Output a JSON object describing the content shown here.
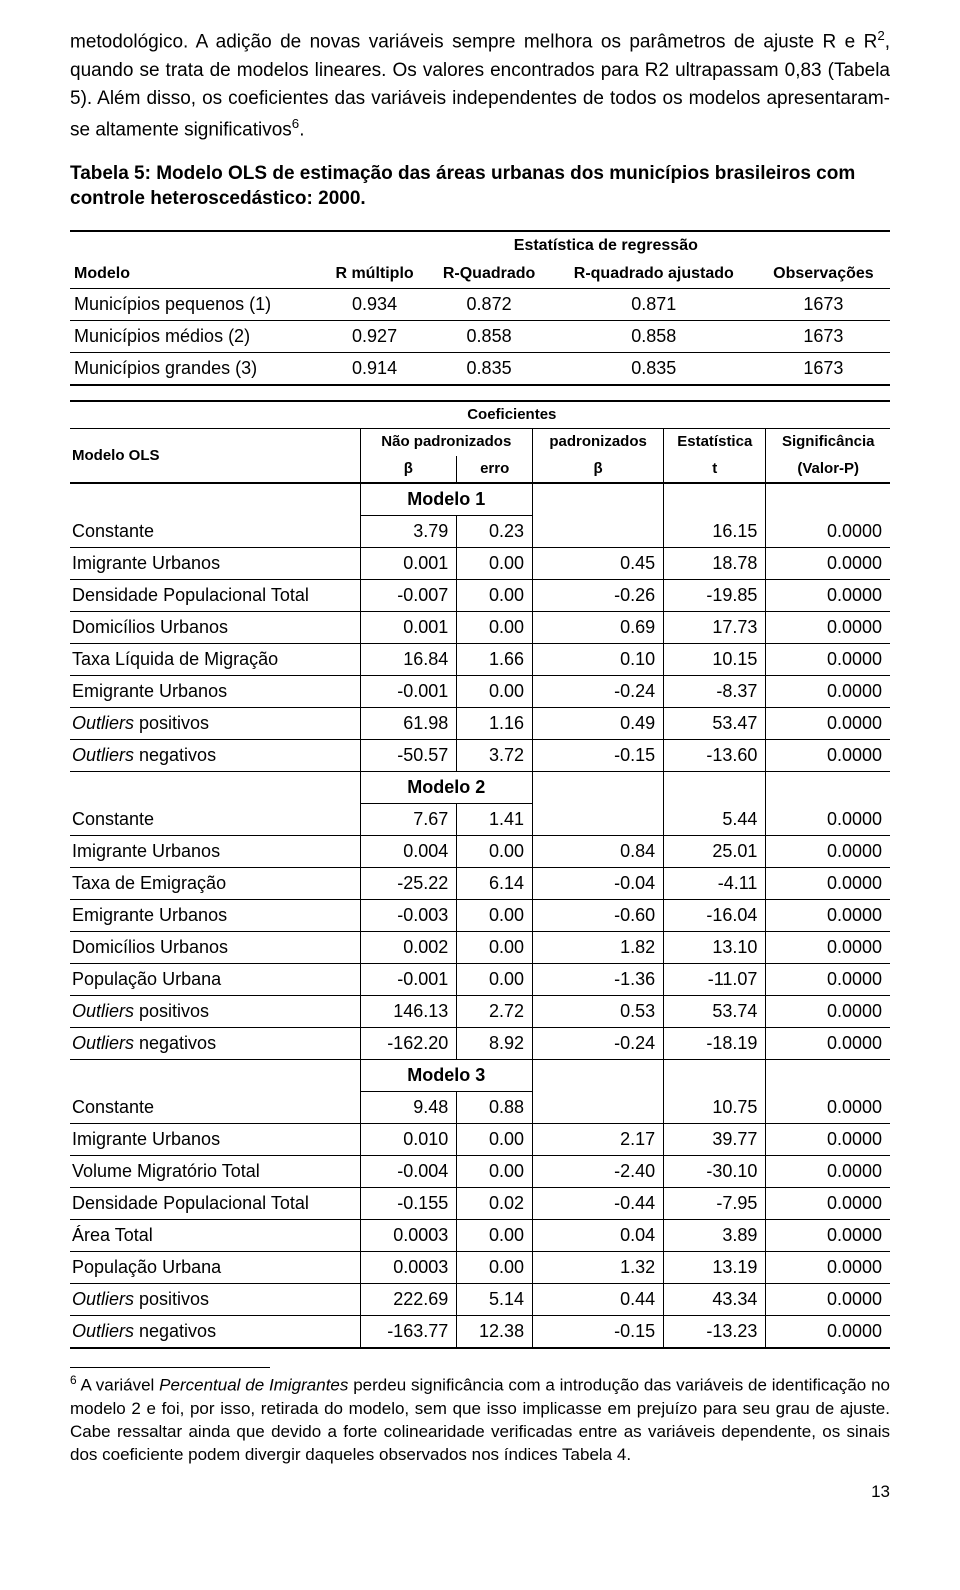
{
  "paragraph1_a": "metodológico. A adição de novas variáveis sempre melhora os parâmetros de ajuste R e R",
  "paragraph1_sup1": "2",
  "paragraph1_b": ", quando se trata de modelos lineares. Os valores encontrados para R2 ultrapassam 0,83 (Tabela 5). Além disso, os coeficientes das variáveis independentes de todos os modelos apresentaram-se altamente significativos",
  "paragraph1_sup2": "6",
  "paragraph1_c": ".",
  "table_caption": "Tabela 5: Modelo OLS de estimação das áreas urbanas dos municípios brasileiros com controle heteroscedástico: 2000.",
  "t1": {
    "super_header": "Estatística de regressão",
    "h_model": "Modelo",
    "h_rm": "R múltiplo",
    "h_r2": "R-Quadrado",
    "h_r2a": "R-quadrado ajustado",
    "h_obs": "Observações",
    "rows": [
      {
        "label": "Municípios pequenos (1)",
        "rm": "0.934",
        "r2": "0.872",
        "r2a": "0.871",
        "obs": "1673"
      },
      {
        "label": "Municípios médios (2)",
        "rm": "0.927",
        "r2": "0.858",
        "r2a": "0.858",
        "obs": "1673"
      },
      {
        "label": "Municípios grandes (3)",
        "rm": "0.914",
        "r2": "0.835",
        "r2a": "0.835",
        "obs": "1673"
      }
    ]
  },
  "t2": {
    "h_model": "Modelo OLS",
    "h_coef": "Coeficientes",
    "h_nonstd": "Não padronizados",
    "h_std": "padronizados",
    "h_stat": "Estatística",
    "h_sig": "Significância",
    "h_beta": "β",
    "h_err": "erro",
    "h_t": "t",
    "h_p": "(Valor-P)",
    "sections": [
      {
        "title": "Modelo 1",
        "rows": [
          {
            "v": "Constante",
            "b": "3.79",
            "e": "0.23",
            "bstd": "",
            "t": "16.15",
            "p": "0.0000"
          },
          {
            "v": "Imigrante Urbanos",
            "b": "0.001",
            "e": "0.00",
            "bstd": "0.45",
            "t": "18.78",
            "p": "0.0000"
          },
          {
            "v": "Densidade Populacional Total",
            "b": "-0.007",
            "e": "0.00",
            "bstd": "-0.26",
            "t": "-19.85",
            "p": "0.0000"
          },
          {
            "v": "Domicílios Urbanos",
            "b": "0.001",
            "e": "0.00",
            "bstd": "0.69",
            "t": "17.73",
            "p": "0.0000"
          },
          {
            "v": "Taxa Líquida de Migração",
            "b": "16.84",
            "e": "1.66",
            "bstd": "0.10",
            "t": "10.15",
            "p": "0.0000"
          },
          {
            "v": "Emigrante Urbanos",
            "b": "-0.001",
            "e": "0.00",
            "bstd": "-0.24",
            "t": "-8.37",
            "p": "0.0000"
          },
          {
            "v": "Outliers positivos",
            "it": true,
            "b": "61.98",
            "e": "1.16",
            "bstd": "0.49",
            "t": "53.47",
            "p": "0.0000"
          },
          {
            "v": "Outliers negativos",
            "it": true,
            "b": "-50.57",
            "e": "3.72",
            "bstd": "-0.15",
            "t": "-13.60",
            "p": "0.0000"
          }
        ]
      },
      {
        "title": "Modelo 2",
        "rows": [
          {
            "v": "Constante",
            "b": "7.67",
            "e": "1.41",
            "bstd": "",
            "t": "5.44",
            "p": "0.0000"
          },
          {
            "v": "Imigrante Urbanos",
            "b": "0.004",
            "e": "0.00",
            "bstd": "0.84",
            "t": "25.01",
            "p": "0.0000"
          },
          {
            "v": "Taxa de Emigração",
            "b": "-25.22",
            "e": "6.14",
            "bstd": "-0.04",
            "t": "-4.11",
            "p": "0.0000"
          },
          {
            "v": "Emigrante Urbanos",
            "b": "-0.003",
            "e": "0.00",
            "bstd": "-0.60",
            "t": "-16.04",
            "p": "0.0000"
          },
          {
            "v": "Domicílios Urbanos",
            "b": "0.002",
            "e": "0.00",
            "bstd": "1.82",
            "t": "13.10",
            "p": "0.0000"
          },
          {
            "v": "População Urbana",
            "b": "-0.001",
            "e": "0.00",
            "bstd": "-1.36",
            "t": "-11.07",
            "p": "0.0000"
          },
          {
            "v": "Outliers positivos",
            "it": true,
            "b": "146.13",
            "e": "2.72",
            "bstd": "0.53",
            "t": "53.74",
            "p": "0.0000"
          },
          {
            "v": "Outliers negativos",
            "it": true,
            "b": "-162.20",
            "e": "8.92",
            "bstd": "-0.24",
            "t": "-18.19",
            "p": "0.0000"
          }
        ]
      },
      {
        "title": "Modelo 3",
        "rows": [
          {
            "v": "Constante",
            "b": "9.48",
            "e": "0.88",
            "bstd": "",
            "t": "10.75",
            "p": "0.0000"
          },
          {
            "v": "Imigrante Urbanos",
            "b": "0.010",
            "e": "0.00",
            "bstd": "2.17",
            "t": "39.77",
            "p": "0.0000"
          },
          {
            "v": "Volume Migratório Total",
            "b": "-0.004",
            "e": "0.00",
            "bstd": "-2.40",
            "t": "-30.10",
            "p": "0.0000"
          },
          {
            "v": "Densidade Populacional Total",
            "b": "-0.155",
            "e": "0.02",
            "bstd": "-0.44",
            "t": "-7.95",
            "p": "0.0000"
          },
          {
            "v": "Área Total",
            "b": "0.0003",
            "e": "0.00",
            "bstd": "0.04",
            "t": "3.89",
            "p": "0.0000"
          },
          {
            "v": "População Urbana",
            "b": "0.0003",
            "e": "0.00",
            "bstd": "1.32",
            "t": "13.19",
            "p": "0.0000"
          },
          {
            "v": "Outliers positivos",
            "it": true,
            "b": "222.69",
            "e": "5.14",
            "bstd": "0.44",
            "t": "43.34",
            "p": "0.0000"
          },
          {
            "v": "Outliers negativos",
            "it": true,
            "b": "-163.77",
            "e": "12.38",
            "bstd": "-0.15",
            "t": "-13.23",
            "p": "0.0000"
          }
        ]
      }
    ]
  },
  "footnote_sup": "6",
  "footnote_a": " A variável ",
  "footnote_it": "Percentual de Imigrantes",
  "footnote_b": "  perdeu significância com a introdução das variáveis de identificação no modelo 2 e foi, por isso, retirada do modelo, sem que isso implicasse em prejuízo para seu grau de ajuste. Cabe ressaltar ainda que devido a forte colinearidade verificadas entre as variáveis dependente, os sinais dos coeficiente podem divergir daqueles observados nos índices Tabela 4.",
  "page_number": "13"
}
